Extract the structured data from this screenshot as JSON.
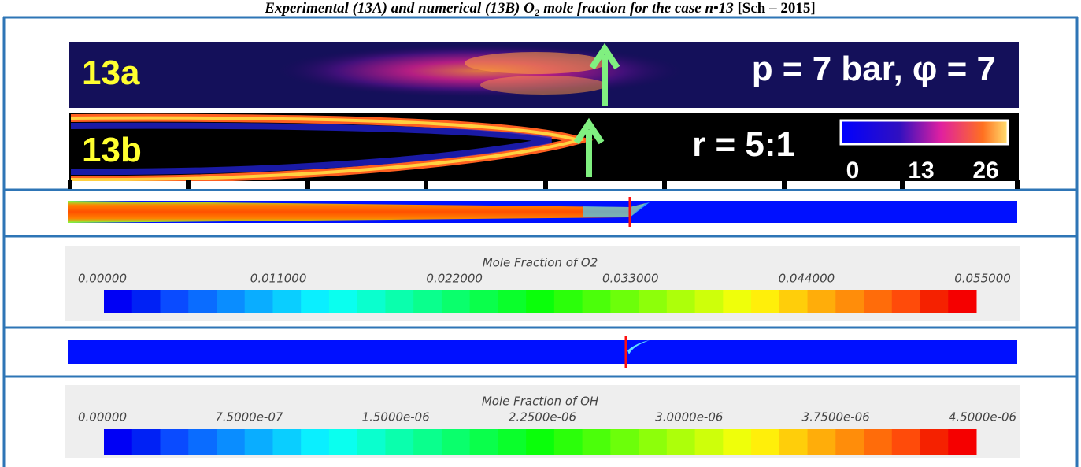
{
  "header": {
    "title": "Experimental (13A) and numerical (13B) O₂ mole fraction for the case n•13",
    "reference": "[Sch – 2015]"
  },
  "panel_a": {
    "label": "13a",
    "conditions": "p = 7 bar, φ = 7"
  },
  "panel_b": {
    "label": "13b",
    "ratio": "r = 5:1",
    "scale_labels": [
      "0",
      "13",
      "26"
    ]
  },
  "colorbar_o2": {
    "title": "Mole Fraction of O2",
    "tick_labels": [
      "0.00000",
      "0.011000",
      "0.022000",
      "0.033000",
      "0.044000",
      "0.055000"
    ]
  },
  "colorbar_oh": {
    "title": "Mole Fraction of OH",
    "tick_labels": [
      "0.00000",
      "7.5000e-07",
      "1.5000e-06",
      "2.2500e-06",
      "3.0000e-06",
      "3.7500e-06",
      "4.5000e-06"
    ]
  }
}
